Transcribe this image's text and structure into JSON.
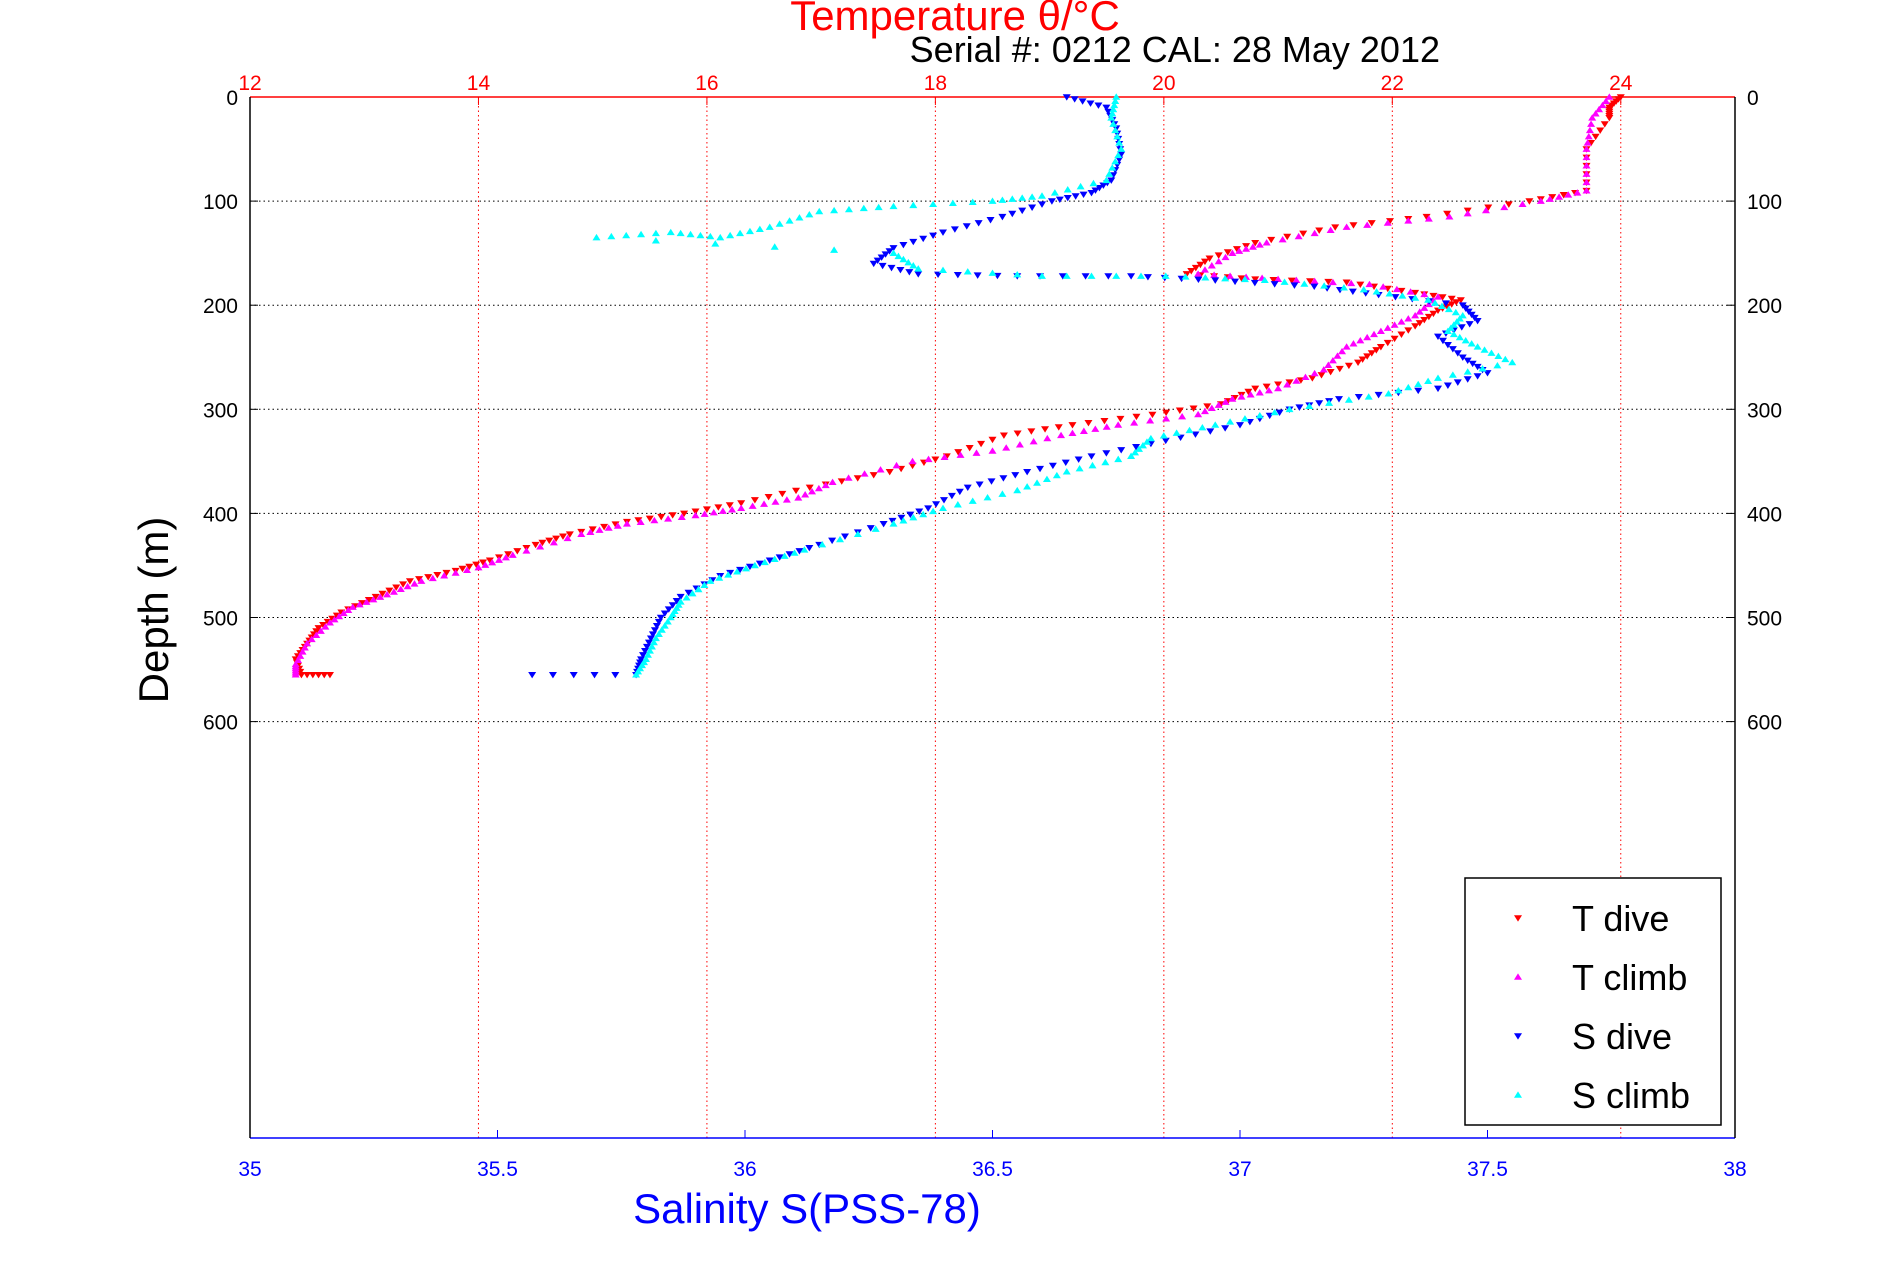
{
  "chart_data": {
    "type": "scatter",
    "title": "Temperature θ/°C",
    "subtitle": "Serial #: 0212  CAL: 28 May 2012",
    "xlabel": "Salinity S(PSS-78)",
    "ylabel": "Depth (m)",
    "x_sal_range": [
      35,
      38
    ],
    "x_sal_ticks": [
      "35",
      "35.5",
      "36",
      "36.5",
      "37",
      "37.5",
      "38"
    ],
    "x_temp_range": [
      12,
      25
    ],
    "x_temp_ticks": [
      "12",
      "14",
      "16",
      "18",
      "20",
      "22",
      "24"
    ],
    "y_range": [
      0,
      1000
    ],
    "y_ticks": [
      "0",
      "100",
      "200",
      "300",
      "400",
      "500",
      "600"
    ],
    "grid": true,
    "legend_position": "bottom-right",
    "colors": {
      "t_dive": "#ff0000",
      "t_climb": "#ff00ff",
      "s_dive": "#0000ff",
      "s_climb": "#00ffff",
      "temp_axis": "#ff0000",
      "sal_axis": "#0000ff"
    },
    "series": [
      {
        "name": "T dive",
        "axis": "temperature",
        "marker": "triangle-down",
        "color": "#ff0000",
        "points": [
          [
            24.0,
            0
          ],
          [
            23.9,
            10
          ],
          [
            23.9,
            20
          ],
          [
            23.7,
            50
          ],
          [
            23.7,
            90
          ],
          [
            23.2,
            100
          ],
          [
            22.3,
            115
          ],
          [
            21.5,
            125
          ],
          [
            20.8,
            140
          ],
          [
            20.4,
            155
          ],
          [
            20.2,
            170
          ],
          [
            20.8,
            175
          ],
          [
            21.6,
            178
          ],
          [
            22.2,
            188
          ],
          [
            22.6,
            195
          ],
          [
            22.4,
            205
          ],
          [
            22.2,
            220
          ],
          [
            21.9,
            240
          ],
          [
            21.7,
            255
          ],
          [
            21.3,
            270
          ],
          [
            20.8,
            280
          ],
          [
            20.5,
            295
          ],
          [
            19.9,
            305
          ],
          [
            19.2,
            315
          ],
          [
            18.6,
            325
          ],
          [
            18.1,
            345
          ],
          [
            17.6,
            360
          ],
          [
            16.9,
            375
          ],
          [
            16.3,
            390
          ],
          [
            15.8,
            400
          ],
          [
            15.3,
            408
          ],
          [
            14.8,
            420
          ],
          [
            14.5,
            430
          ],
          [
            14.1,
            445
          ],
          [
            13.8,
            455
          ],
          [
            13.4,
            465
          ],
          [
            13.1,
            480
          ],
          [
            12.8,
            495
          ],
          [
            12.6,
            510
          ],
          [
            12.5,
            525
          ],
          [
            12.4,
            540
          ],
          [
            12.45,
            555
          ],
          [
            12.7,
            555
          ]
        ]
      },
      {
        "name": "T climb",
        "axis": "temperature",
        "marker": "triangle-up",
        "color": "#ff00ff",
        "points": [
          [
            23.9,
            0
          ],
          [
            23.75,
            20
          ],
          [
            23.7,
            50
          ],
          [
            23.7,
            90
          ],
          [
            23.3,
            100
          ],
          [
            22.5,
            115
          ],
          [
            21.6,
            125
          ],
          [
            20.9,
            140
          ],
          [
            20.6,
            150
          ],
          [
            20.3,
            170
          ],
          [
            21.0,
            175
          ],
          [
            21.8,
            180
          ],
          [
            22.4,
            192
          ],
          [
            22.2,
            210
          ],
          [
            21.9,
            225
          ],
          [
            21.6,
            240
          ],
          [
            21.4,
            262
          ],
          [
            21.0,
            280
          ],
          [
            20.6,
            290
          ],
          [
            20.3,
            305
          ],
          [
            19.6,
            315
          ],
          [
            19.1,
            325
          ],
          [
            18.5,
            340
          ],
          [
            17.8,
            350
          ],
          [
            17.1,
            370
          ],
          [
            16.8,
            385
          ],
          [
            16.3,
            395
          ],
          [
            15.9,
            402
          ],
          [
            15.3,
            410
          ],
          [
            14.9,
            420
          ],
          [
            14.3,
            440
          ],
          [
            14.0,
            452
          ],
          [
            13.5,
            465
          ],
          [
            13.2,
            478
          ],
          [
            12.9,
            490
          ],
          [
            12.7,
            505
          ],
          [
            12.5,
            525
          ],
          [
            12.4,
            545
          ],
          [
            12.4,
            555
          ]
        ]
      },
      {
        "name": "S dive",
        "axis": "salinity",
        "marker": "triangle-down",
        "color": "#0000ff",
        "points": [
          [
            36.65,
            0
          ],
          [
            36.73,
            10
          ],
          [
            36.75,
            30
          ],
          [
            36.76,
            55
          ],
          [
            36.74,
            80
          ],
          [
            36.7,
            92
          ],
          [
            36.62,
            100
          ],
          [
            36.52,
            115
          ],
          [
            36.4,
            130
          ],
          [
            36.3,
            145
          ],
          [
            36.26,
            160
          ],
          [
            36.35,
            170
          ],
          [
            36.55,
            172
          ],
          [
            36.78,
            172
          ],
          [
            36.95,
            176
          ],
          [
            37.15,
            182
          ],
          [
            37.28,
            190
          ],
          [
            37.45,
            200
          ],
          [
            37.48,
            215
          ],
          [
            37.4,
            230
          ],
          [
            37.45,
            250
          ],
          [
            37.5,
            265
          ],
          [
            37.4,
            280
          ],
          [
            37.2,
            290
          ],
          [
            37.1,
            300
          ],
          [
            37.0,
            315
          ],
          [
            36.85,
            330
          ],
          [
            36.7,
            345
          ],
          [
            36.57,
            360
          ],
          [
            36.45,
            375
          ],
          [
            36.37,
            395
          ],
          [
            36.28,
            410
          ],
          [
            36.15,
            430
          ],
          [
            36.05,
            445
          ],
          [
            35.95,
            460
          ],
          [
            35.87,
            480
          ],
          [
            35.83,
            500
          ],
          [
            35.81,
            520
          ],
          [
            35.79,
            540
          ],
          [
            35.78,
            555
          ],
          [
            35.57,
            555
          ]
        ]
      },
      {
        "name": "S climb",
        "axis": "salinity",
        "marker": "triangle-up",
        "color": "#00ffff",
        "points": [
          [
            36.75,
            0
          ],
          [
            36.74,
            20
          ],
          [
            36.76,
            50
          ],
          [
            36.73,
            80
          ],
          [
            36.6,
            95
          ],
          [
            36.5,
            100
          ],
          [
            36.3,
            105
          ],
          [
            36.15,
            110
          ],
          [
            36.05,
            125
          ],
          [
            35.95,
            135
          ],
          [
            35.85,
            130
          ],
          [
            35.7,
            135
          ],
          [
            36.3,
            150
          ],
          [
            36.35,
            165
          ],
          [
            36.6,
            172
          ],
          [
            36.85,
            172
          ],
          [
            37.05,
            176
          ],
          [
            37.25,
            185
          ],
          [
            37.38,
            195
          ],
          [
            37.45,
            210
          ],
          [
            37.42,
            225
          ],
          [
            37.48,
            240
          ],
          [
            37.55,
            255
          ],
          [
            37.4,
            270
          ],
          [
            37.3,
            285
          ],
          [
            37.1,
            300
          ],
          [
            36.95,
            315
          ],
          [
            36.82,
            328
          ],
          [
            36.78,
            345
          ],
          [
            36.65,
            360
          ],
          [
            36.55,
            378
          ],
          [
            36.4,
            395
          ],
          [
            36.3,
            410
          ],
          [
            36.12,
            435
          ],
          [
            36.02,
            450
          ],
          [
            35.93,
            465
          ],
          [
            35.87,
            485
          ],
          [
            35.85,
            500
          ],
          [
            35.82,
            520
          ],
          [
            35.8,
            540
          ],
          [
            35.78,
            555
          ]
        ]
      }
    ],
    "legend": [
      "T dive",
      "T climb",
      "S dive",
      "S climb"
    ]
  }
}
